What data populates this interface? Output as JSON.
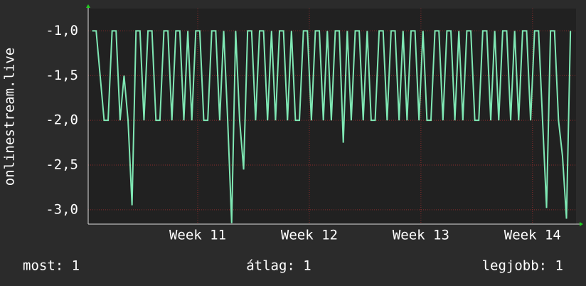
{
  "chart_data": {
    "type": "line",
    "y_label": "onlinestream.live",
    "xlim": [
      0,
      30.6
    ],
    "xticks": [
      {
        "value": 6.87,
        "label": "Week 11"
      },
      {
        "value": 13.87,
        "label": "Week 12"
      },
      {
        "value": 20.87,
        "label": "Week 13"
      },
      {
        "value": 27.87,
        "label": "Week 14"
      }
    ],
    "ylim": [
      -3.16,
      -0.75
    ],
    "yticks": [
      {
        "value": -1.0,
        "label": "-1,0"
      },
      {
        "value": -1.5,
        "label": "-1,5"
      },
      {
        "value": -2.0,
        "label": "-2,0"
      },
      {
        "value": -2.5,
        "label": "-2,5"
      },
      {
        "value": -3.0,
        "label": "-3,0"
      }
    ],
    "grid": true,
    "series": [
      {
        "color": "#7fe8b4",
        "x": [
          0.25,
          0.5,
          0.75,
          1,
          1.25,
          1.5,
          1.75,
          2,
          2.25,
          2.5,
          2.75,
          3,
          3.25,
          3.5,
          3.75,
          4,
          4.25,
          4.5,
          4.75,
          5,
          5.25,
          5.5,
          5.75,
          6,
          6.25,
          6.5,
          6.75,
          7,
          7.25,
          7.5,
          7.75,
          8,
          8.25,
          8.5,
          8.75,
          9,
          9.25,
          9.5,
          9.75,
          10,
          10.25,
          10.5,
          10.75,
          11,
          11.25,
          11.5,
          11.75,
          12,
          12.25,
          12.5,
          12.75,
          13,
          13.25,
          13.5,
          13.75,
          14,
          14.25,
          14.5,
          14.75,
          15,
          15.25,
          15.5,
          15.75,
          16,
          16.25,
          16.5,
          16.75,
          17,
          17.25,
          17.5,
          17.75,
          18,
          18.25,
          18.5,
          18.75,
          19,
          19.25,
          19.5,
          19.75,
          20,
          20.25,
          20.5,
          20.75,
          21,
          21.25,
          21.5,
          21.75,
          22,
          22.25,
          22.5,
          22.75,
          23,
          23.25,
          23.5,
          23.75,
          24,
          24.25,
          24.5,
          24.75,
          25,
          25.25,
          25.5,
          25.75,
          26,
          26.25,
          26.5,
          26.75,
          27,
          27.25,
          27.5,
          27.75,
          28,
          28.25,
          28.5,
          28.75,
          29,
          29.25,
          29.5,
          29.75,
          30,
          30.25
        ],
        "values": [
          -1,
          -1,
          -1.5,
          -2,
          -2,
          -1,
          -1,
          -2,
          -1.5,
          -2,
          -2.95,
          -1,
          -1,
          -2,
          -1,
          -1,
          -2,
          -2,
          -1,
          -1,
          -2,
          -1,
          -1,
          -2,
          -1,
          -2,
          -1,
          -1,
          -2,
          -2,
          -1,
          -1,
          -2,
          -1,
          -2,
          -3.15,
          -1,
          -2,
          -2.55,
          -1,
          -1,
          -2,
          -1,
          -1,
          -2,
          -1,
          -2,
          -1,
          -1,
          -2,
          -1,
          -2,
          -2,
          -1,
          -1,
          -2,
          -1,
          -1,
          -2,
          -1,
          -2,
          -1,
          -1,
          -2.25,
          -1,
          -2,
          -1,
          -1,
          -2,
          -1,
          -2,
          -2,
          -1,
          -1,
          -2,
          -1,
          -1,
          -2,
          -1,
          -2,
          -1,
          -1,
          -2,
          -1,
          -2,
          -2,
          -1,
          -1,
          -2,
          -1,
          -1,
          -2,
          -1,
          -2,
          -1,
          -1,
          -2,
          -2,
          -1,
          -1,
          -2,
          -1,
          -2,
          -1,
          -1,
          -2,
          -1,
          -2,
          -1,
          -1,
          -2,
          -1,
          -1,
          -2,
          -2.98,
          -1,
          -1,
          -2,
          -2.4,
          -3.1,
          -1
        ]
      }
    ],
    "footer": [
      "most: 1",
      "átlag: 1",
      "legjobb: 1"
    ]
  }
}
